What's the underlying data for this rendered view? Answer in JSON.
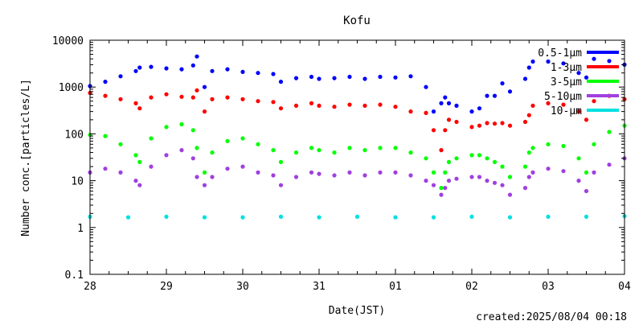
{
  "chart_data": {
    "type": "scatter",
    "title": "Kofu",
    "xlabel": "Date(JST)",
    "ylabel": "Number conc.[particles/L]",
    "footer": "created:2025/08/04 00:18",
    "yscale": "log",
    "ylim": [
      0.1,
      10000
    ],
    "xlim": [
      0,
      7
    ],
    "x_tick_labels": [
      "28",
      "29",
      "30",
      "31",
      "01",
      "02",
      "03",
      "04"
    ],
    "y_tick_labels": [
      "0.1",
      "1",
      "10",
      "100",
      "1000",
      "10000"
    ],
    "y_tick_values": [
      0.1,
      1,
      10,
      100,
      1000,
      10000
    ],
    "grid": false,
    "legend_position": "top-right",
    "series": [
      {
        "name": "0.5-1μm",
        "color": "#0000ff",
        "x": [
          0.0,
          0.2,
          0.4,
          0.6,
          0.65,
          0.8,
          1.0,
          1.2,
          1.35,
          1.4,
          1.5,
          1.6,
          1.8,
          2.0,
          2.2,
          2.4,
          2.5,
          2.7,
          2.9,
          3.0,
          3.2,
          3.4,
          3.6,
          3.8,
          4.0,
          4.2,
          4.4,
          4.5,
          4.6,
          4.65,
          4.7,
          4.8,
          5.0,
          5.1,
          5.2,
          5.3,
          5.4,
          5.5,
          5.7,
          5.75,
          5.8,
          6.0,
          6.2,
          6.4,
          6.5,
          6.6,
          6.8,
          7.0
        ],
        "values": [
          1050,
          1300,
          1700,
          2200,
          2600,
          2700,
          2500,
          2400,
          2900,
          4500,
          1000,
          2200,
          2400,
          2100,
          2000,
          1900,
          1300,
          1550,
          1650,
          1500,
          1550,
          1650,
          1500,
          1650,
          1600,
          1700,
          1000,
          300,
          450,
          600,
          450,
          400,
          300,
          350,
          650,
          650,
          1200,
          800,
          1500,
          2600,
          3500,
          3500,
          3200,
          2000,
          1600,
          4000,
          3600,
          3000
        ]
      },
      {
        "name": "1-3μm",
        "color": "#ff0000",
        "x": [
          0.0,
          0.2,
          0.4,
          0.6,
          0.65,
          0.8,
          1.0,
          1.2,
          1.35,
          1.4,
          1.5,
          1.6,
          1.8,
          2.0,
          2.2,
          2.4,
          2.5,
          2.7,
          2.9,
          3.0,
          3.2,
          3.4,
          3.6,
          3.8,
          4.0,
          4.2,
          4.4,
          4.5,
          4.6,
          4.65,
          4.7,
          4.8,
          5.0,
          5.1,
          5.2,
          5.3,
          5.4,
          5.5,
          5.7,
          5.75,
          5.8,
          6.0,
          6.2,
          6.4,
          6.5,
          6.6,
          6.8,
          7.0
        ],
        "values": [
          750,
          650,
          550,
          450,
          350,
          600,
          700,
          620,
          600,
          850,
          300,
          550,
          600,
          550,
          500,
          480,
          350,
          400,
          450,
          400,
          380,
          420,
          400,
          420,
          380,
          300,
          280,
          120,
          45,
          120,
          200,
          180,
          140,
          150,
          170,
          165,
          170,
          150,
          180,
          250,
          400,
          450,
          420,
          300,
          200,
          500,
          650,
          550
        ]
      },
      {
        "name": "3-5μm",
        "color": "#00ff00",
        "x": [
          0.0,
          0.2,
          0.4,
          0.6,
          0.65,
          0.8,
          1.0,
          1.2,
          1.35,
          1.4,
          1.5,
          1.6,
          1.8,
          2.0,
          2.2,
          2.4,
          2.5,
          2.7,
          2.9,
          3.0,
          3.2,
          3.4,
          3.6,
          3.8,
          4.0,
          4.2,
          4.4,
          4.5,
          4.6,
          4.65,
          4.7,
          4.8,
          5.0,
          5.1,
          5.2,
          5.3,
          5.4,
          5.5,
          5.7,
          5.75,
          5.8,
          6.0,
          6.2,
          6.4,
          6.5,
          6.6,
          6.8,
          7.0
        ],
        "values": [
          95,
          90,
          60,
          35,
          25,
          80,
          140,
          160,
          120,
          50,
          15,
          40,
          70,
          80,
          60,
          45,
          25,
          40,
          50,
          45,
          40,
          50,
          45,
          50,
          50,
          40,
          30,
          15,
          7,
          15,
          25,
          30,
          35,
          35,
          30,
          25,
          20,
          12,
          20,
          40,
          50,
          60,
          55,
          30,
          15,
          60,
          110,
          150
        ]
      },
      {
        "name": "5-10μm",
        "color": "#a040e0",
        "x": [
          0.0,
          0.2,
          0.4,
          0.6,
          0.65,
          0.8,
          1.0,
          1.2,
          1.35,
          1.4,
          1.5,
          1.6,
          1.8,
          2.0,
          2.2,
          2.4,
          2.5,
          2.7,
          2.9,
          3.0,
          3.2,
          3.4,
          3.6,
          3.8,
          4.0,
          4.2,
          4.4,
          4.5,
          4.6,
          4.65,
          4.7,
          4.8,
          5.0,
          5.1,
          5.2,
          5.3,
          5.4,
          5.5,
          5.7,
          5.75,
          5.8,
          6.0,
          6.2,
          6.4,
          6.5,
          6.6,
          6.8,
          7.0
        ],
        "values": [
          15,
          18,
          15,
          10,
          8,
          20,
          35,
          45,
          30,
          12,
          8,
          12,
          18,
          20,
          15,
          13,
          8,
          12,
          15,
          14,
          13,
          15,
          13,
          15,
          15,
          13,
          10,
          8,
          5,
          7,
          10,
          11,
          12,
          12,
          10,
          9,
          8,
          5,
          7,
          12,
          15,
          18,
          16,
          10,
          6,
          15,
          22,
          30
        ]
      },
      {
        "name": "10-μm",
        "color": "#00e0e0",
        "x": [
          0.0,
          0.5,
          1.0,
          1.5,
          2.0,
          2.5,
          3.0,
          3.5,
          4.0,
          4.5,
          5.0,
          5.5,
          6.0,
          6.5,
          7.0
        ],
        "values": [
          1.7,
          1.65,
          1.7,
          1.65,
          1.65,
          1.7,
          1.65,
          1.7,
          1.65,
          1.65,
          1.7,
          1.65,
          1.7,
          1.7,
          1.75
        ]
      }
    ]
  }
}
